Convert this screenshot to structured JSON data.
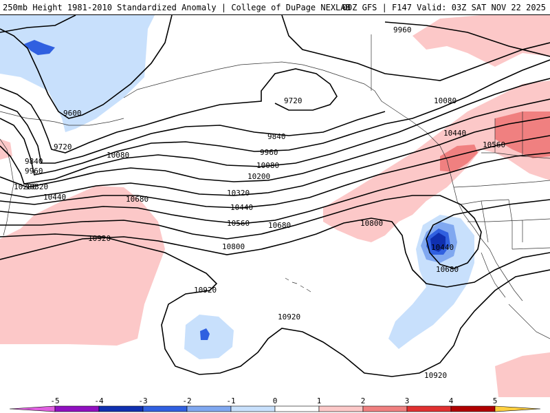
{
  "header": {
    "left": "250mb Height 1981-2010 Standardized Anomaly | College of DuPage NEXLAB",
    "right": "00Z GFS | F147 Valid: 03Z SAT NOV 22 2025"
  },
  "contour_labels": [
    "9960",
    "9720",
    "9600",
    "10080",
    "9720",
    "9840",
    "9840",
    "9960",
    "10440",
    "10560",
    "9960",
    "10080",
    "10080",
    "10200",
    "10200",
    "10320",
    "10320",
    "10440",
    "10440",
    "10680",
    "10560",
    "10680",
    "10920",
    "10800",
    "10800",
    "10440",
    "10680",
    "10920",
    "10920",
    "10920"
  ],
  "colorbar": {
    "ticks": [
      "-5",
      "-4",
      "-3",
      "-2",
      "-1",
      "0",
      "1",
      "2",
      "3",
      "4",
      "5"
    ],
    "colors": [
      "#e060e0",
      "#9010c0",
      "#1030b0",
      "#3060e0",
      "#80a8f0",
      "#c8e0fc",
      "#ffffff",
      "#fcc8c8",
      "#f08080",
      "#e03030",
      "#b00000",
      "#f09000",
      "#ffd040"
    ]
  },
  "chart_data": {
    "type": "map",
    "title": "250mb Height 1981-2010 Standardized Anomaly",
    "variable": "250mb geopotential height (m)",
    "contour_levels": [
      9600,
      9720,
      9840,
      9960,
      10080,
      10200,
      10320,
      10440,
      10560,
      10680,
      10800,
      10920
    ],
    "shading": "standardized anomaly",
    "anomaly_range": [
      -5,
      5
    ]
  }
}
